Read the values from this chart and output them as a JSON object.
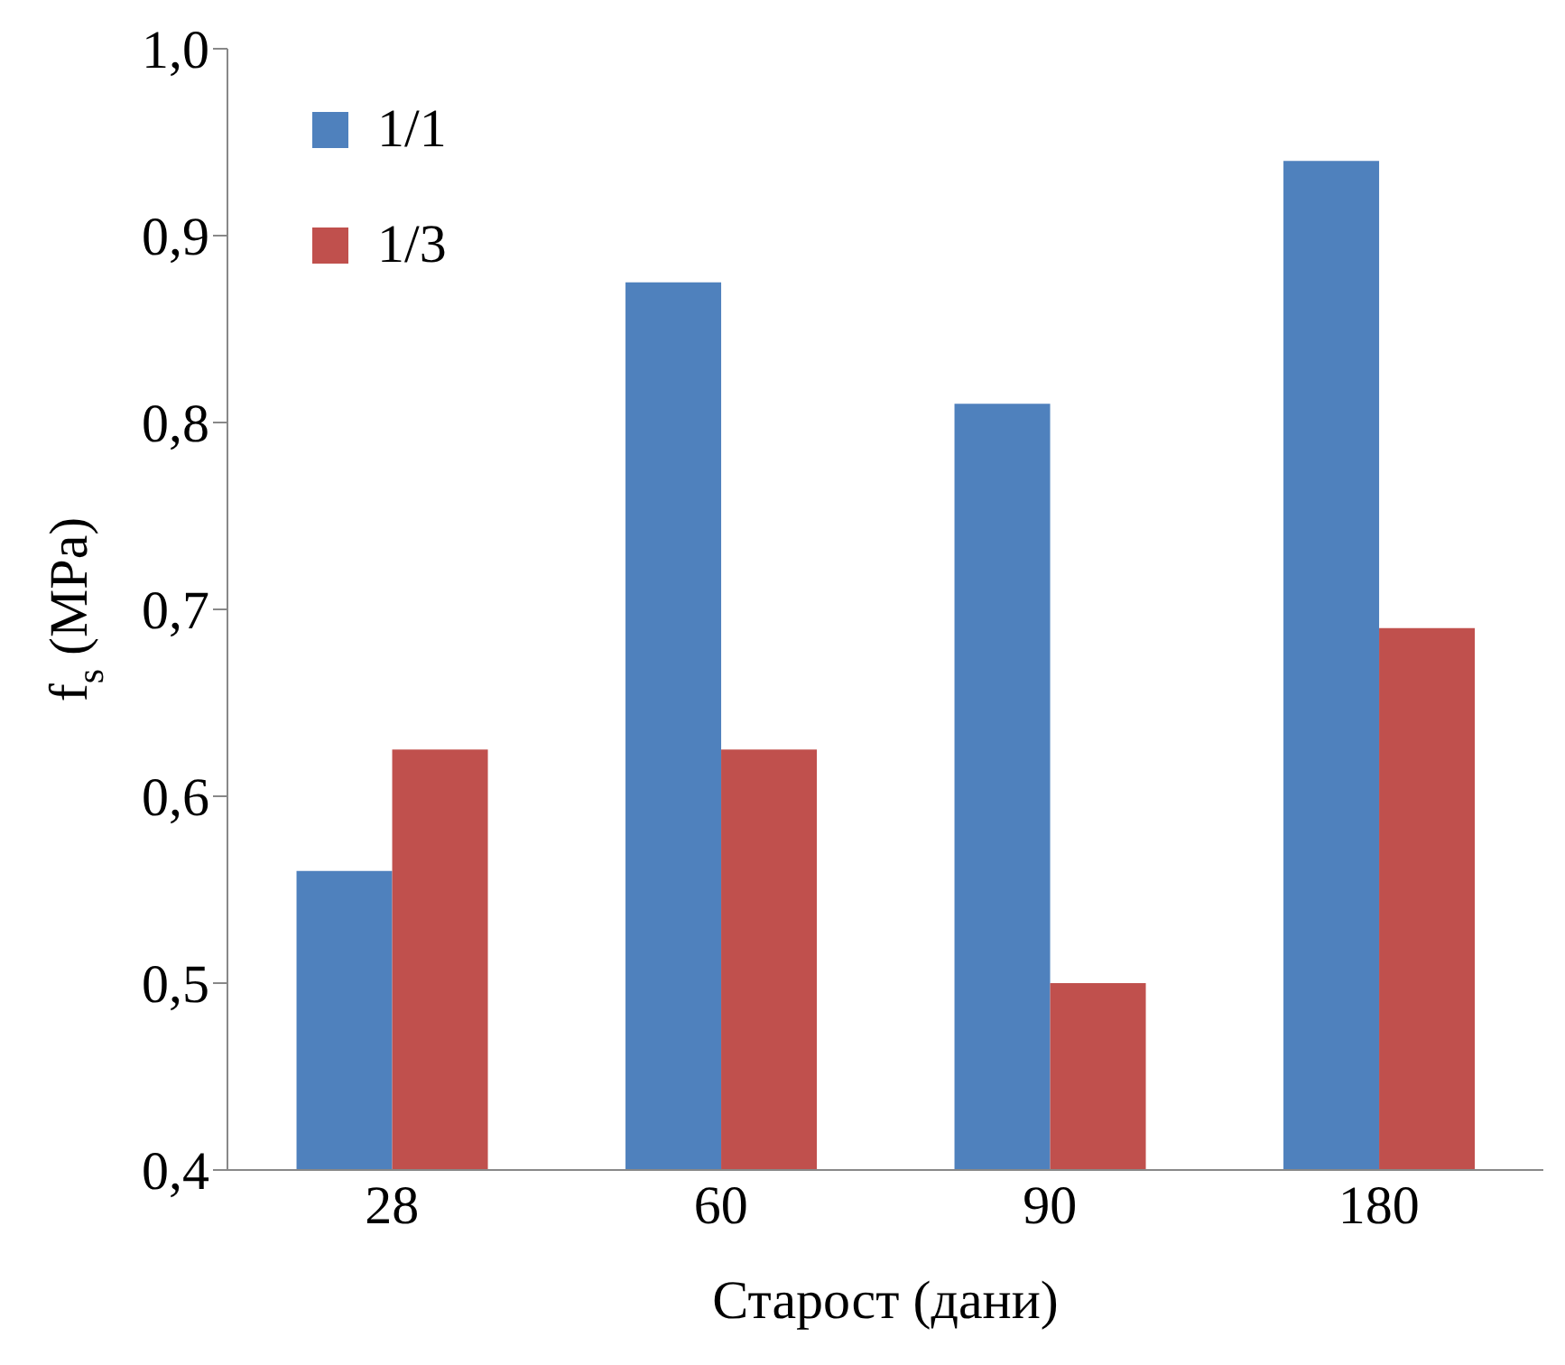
{
  "chart_data": {
    "type": "bar",
    "xlabel": "Старост (дани)",
    "ylabel": "f$_{s}$ (MPa)",
    "categories": [
      "28",
      "60",
      "90",
      "180"
    ],
    "series": [
      {
        "name": "1/1",
        "color": "#4f81bd",
        "values": [
          0.56,
          0.875,
          0.81,
          0.94
        ]
      },
      {
        "name": "1/3",
        "color": "#c0504d",
        "values": [
          0.625,
          0.625,
          0.5,
          0.69
        ]
      }
    ],
    "ylim": [
      0.4,
      1.0
    ],
    "yticks": [
      {
        "value": 0.4,
        "label": "0,4"
      },
      {
        "value": 0.5,
        "label": "0,5"
      },
      {
        "value": 0.6,
        "label": "0,6"
      },
      {
        "value": 0.7,
        "label": "0,7"
      },
      {
        "value": 0.8,
        "label": "0,8"
      },
      {
        "value": 0.9,
        "label": "0,9"
      },
      {
        "value": 1.0,
        "label": "1,0"
      }
    ],
    "grid": false,
    "legend": "top left",
    "marker": "square"
  }
}
